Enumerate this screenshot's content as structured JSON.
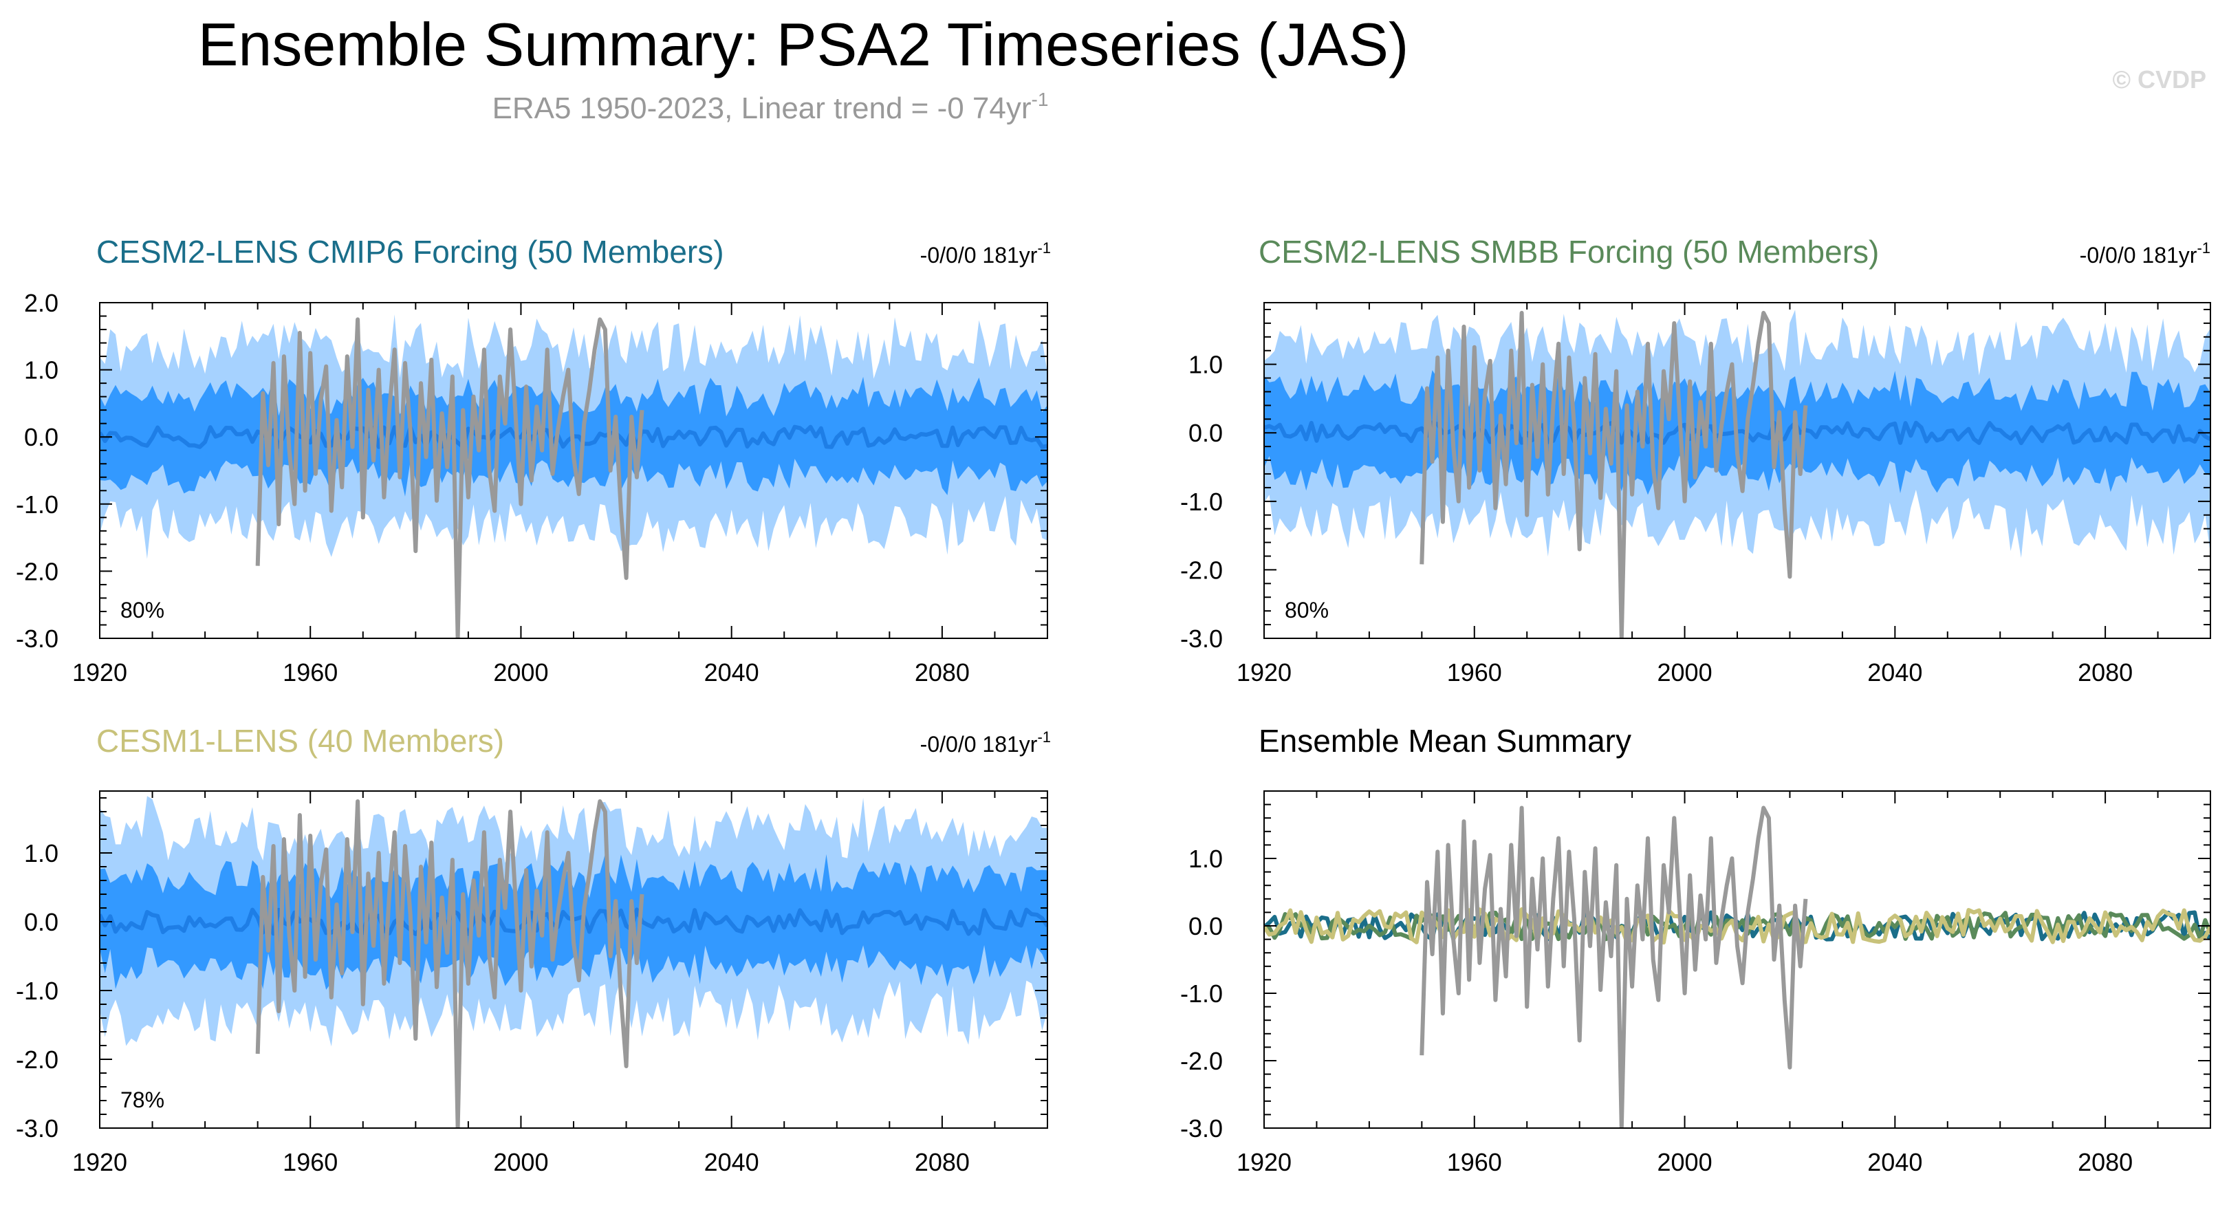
{
  "title": "Ensemble Summary: PSA2 Timeseries (JAS)",
  "subtitle": "ERA5 1950-2023, Linear trend = -0 74yr",
  "subtitle_sup": "-1",
  "watermark": "© CVDP",
  "colors": {
    "cmip6": "#1a6e8a",
    "smbb": "#5a8a5a",
    "cesm1": "#c8c27a",
    "inner_band": "#3399ff",
    "outer_band": "#a6d2ff",
    "mean_line": "#1e7ee6",
    "obs": "#999999"
  },
  "x_ticks": [
    "1920",
    "1960",
    "2000",
    "2040",
    "2080"
  ],
  "chart_data": [
    {
      "type": "area",
      "title": "CESM2-LENS CMIP6 Forcing (50 Members)",
      "trend_label": "-0/0/0 181yr",
      "trend_sup": "-1",
      "percent_label": "80%",
      "xlim": [
        1920,
        2100
      ],
      "ylim": [
        -3.0,
        2.0
      ],
      "y_ticks": [
        "2.0",
        "1.0",
        "0.0",
        "-1.0",
        "-2.0",
        "-3.0"
      ],
      "series": [
        {
          "name": "ensemble 10-90% range",
          "kind": "band",
          "approx_half_width": 1.3
        },
        {
          "name": "ensemble 25-75% range",
          "kind": "band",
          "approx_half_width": 0.6
        },
        {
          "name": "ensemble mean",
          "kind": "line",
          "approx_amplitude": 0.15
        },
        {
          "name": "ERA5",
          "kind": "line",
          "x_range": [
            1950,
            2023
          ]
        }
      ]
    },
    {
      "type": "area",
      "title": "CESM2-LENS SMBB Forcing (50 Members)",
      "trend_label": "-0/0/0 181yr",
      "trend_sup": "-1",
      "percent_label": "80%",
      "xlim": [
        1920,
        2100
      ],
      "ylim": [
        -3.0,
        1.9
      ],
      "y_ticks": [
        "1.0",
        "0.0",
        "-1.0",
        "-2.0",
        "-3.0"
      ],
      "series": [
        {
          "name": "ensemble 10-90% range",
          "kind": "band",
          "approx_half_width": 1.3
        },
        {
          "name": "ensemble 25-75% range",
          "kind": "band",
          "approx_half_width": 0.6
        },
        {
          "name": "ensemble mean",
          "kind": "line",
          "approx_amplitude": 0.15
        },
        {
          "name": "ERA5",
          "kind": "line",
          "x_range": [
            1950,
            2023
          ]
        }
      ]
    },
    {
      "type": "area",
      "title": "CESM1-LENS (40 Members)",
      "trend_label": "-0/0/0 181yr",
      "trend_sup": "-1",
      "percent_label": "78%",
      "xlim": [
        1920,
        2100
      ],
      "ylim": [
        -3.0,
        1.9
      ],
      "y_ticks": [
        "1.0",
        "0.0",
        "-1.0",
        "-2.0",
        "-3.0"
      ],
      "series": [
        {
          "name": "ensemble 10-90% range",
          "kind": "band",
          "approx_half_width": 1.3
        },
        {
          "name": "ensemble 25-75% range",
          "kind": "band",
          "approx_half_width": 0.65
        },
        {
          "name": "ensemble mean",
          "kind": "line",
          "approx_amplitude": 0.18
        },
        {
          "name": "ERA5",
          "kind": "line",
          "x_range": [
            1950,
            2023
          ]
        }
      ]
    },
    {
      "type": "line",
      "title": "Ensemble Mean Summary",
      "xlim": [
        1920,
        2100
      ],
      "ylim": [
        -3.0,
        2.0
      ],
      "y_ticks": [
        "1.0",
        "0.0",
        "-1.0",
        "-2.0",
        "-3.0"
      ],
      "series": [
        {
          "name": "CESM2-LENS CMIP6 Forcing",
          "kind": "line",
          "approx_amplitude": 0.2
        },
        {
          "name": "CESM2-LENS SMBB Forcing",
          "kind": "line",
          "approx_amplitude": 0.2
        },
        {
          "name": "CESM1-LENS",
          "kind": "line",
          "approx_amplitude": 0.25
        },
        {
          "name": "ERA5",
          "kind": "line",
          "x_range": [
            1950,
            2023
          ]
        }
      ]
    }
  ],
  "era5_values": [
    -1.92,
    0.65,
    -0.42,
    1.1,
    -1.3,
    1.2,
    -0.2,
    -1.0,
    1.55,
    -0.8,
    1.25,
    -0.55,
    0.55,
    1.05,
    -1.1,
    0.25,
    -0.75,
    1.2,
    -0.15,
    1.75,
    -1.2,
    0.7,
    -0.35,
    1.0,
    -0.9,
    0.4,
    1.3,
    -0.6,
    1.1,
    0.1,
    -1.7,
    0.8,
    -0.3,
    1.15,
    -0.95,
    0.35,
    -0.45,
    0.9,
    -3.0,
    0.4,
    -0.9,
    0.6,
    -0.2,
    1.3,
    -0.5,
    -1.1,
    0.9,
    0.2,
    1.6,
    0.3,
    -1.0,
    0.75,
    -0.65,
    0.45,
    -0.2,
    1.3,
    -0.55,
    0.1,
    0.6,
    1.0,
    -0.3,
    -0.85,
    0.2,
    0.7,
    1.3,
    1.75,
    1.6,
    -0.5,
    0.3,
    -1.1,
    -2.1,
    0.3,
    -0.6,
    0.4
  ]
}
